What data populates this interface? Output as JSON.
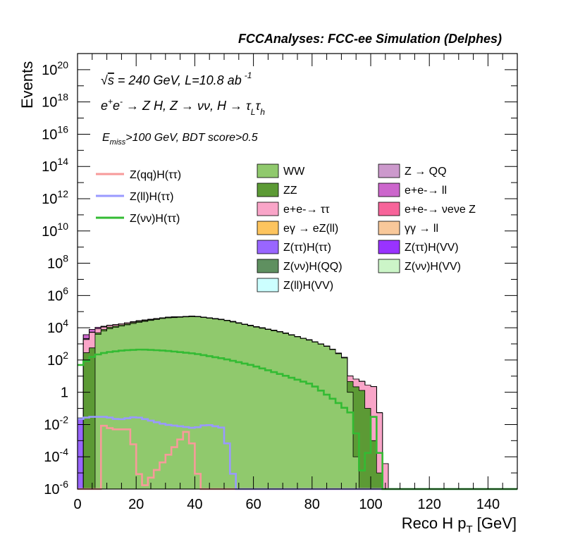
{
  "header": {
    "title": "FCCAnalyses: FCC-ee Simulation (Delphes)"
  },
  "annotations": {
    "line1": {
      "sqrt": "√",
      "s": "s",
      "rest": " = 240 GeV, L=10.8 ab",
      "sup": "-1"
    },
    "line2": {
      "a": "e",
      "a_sup": "+",
      "b": "e",
      "b_sup": "-",
      "c": " → Z H, Z  → νν, H  → τ",
      "c_sub": "L",
      "d": "τ",
      "d_sub": "h"
    },
    "line3": {
      "E": "E",
      "E_sub": "miss",
      "rest": ">100 GeV, BDT score>0.5"
    }
  },
  "chart_data": {
    "type": "histogram",
    "title": "FCCAnalyses: FCC-ee Simulation (Delphes)",
    "xlabel": "Reco H p_T [GeV]",
    "xlabel_parts": {
      "a": "Reco H p",
      "sub": "T",
      "b": " [GeV]"
    },
    "ylabel": "Events",
    "xlim": [
      0,
      150
    ],
    "ylim": [
      1e-06,
      1e+21
    ],
    "yscale": "log",
    "xticks": [
      "0",
      "20",
      "40",
      "60",
      "80",
      "100",
      "120",
      "140"
    ],
    "yticks": [
      {
        "base": "10",
        "exp": "-6"
      },
      {
        "base": "10",
        "exp": "-4"
      },
      {
        "base": "10",
        "exp": "-2"
      },
      {
        "base": "1",
        "exp": ""
      },
      {
        "base": "10",
        "exp": "2"
      },
      {
        "base": "10",
        "exp": "4"
      },
      {
        "base": "10",
        "exp": "6"
      },
      {
        "base": "10",
        "exp": "8"
      },
      {
        "base": "10",
        "exp": "10"
      },
      {
        "base": "10",
        "exp": "12"
      },
      {
        "base": "10",
        "exp": "14"
      },
      {
        "base": "10",
        "exp": "16"
      },
      {
        "base": "10",
        "exp": "18"
      },
      {
        "base": "10",
        "exp": "20"
      }
    ],
    "bin_width": 2,
    "stack": [
      {
        "name": "WW",
        "color": "#90c96d",
        "x": [
          6,
          10,
          20,
          30,
          40,
          50,
          60,
          70,
          80,
          86,
          92,
          96
        ],
        "y": [
          3000.0,
          8000.0,
          20000.0,
          40000.0,
          50000.0,
          30000.0,
          12000.0,
          5000.0,
          1500.0,
          600,
          100,
          1e-06
        ]
      },
      {
        "name": "ZZ",
        "color": "#5c9a35",
        "x": [
          2,
          6,
          10,
          20,
          30,
          40,
          50,
          60,
          70,
          80,
          86,
          90,
          98,
          104
        ],
        "y": [
          200,
          800,
          2000.0,
          3000.0,
          2500.0,
          2000.0,
          1200.0,
          500,
          150,
          40,
          15,
          8,
          1,
          1e-06
        ]
      },
      {
        "name": "e+e- → ττ",
        "color": "#f9a5c8",
        "x": [
          2,
          4,
          10,
          20,
          30,
          40,
          50,
          60,
          70,
          80,
          90,
          98,
          102,
          106
        ],
        "y": [
          500,
          5000.0,
          3000.0,
          2500.0,
          2000.0,
          1500.0,
          800,
          300,
          120,
          40,
          8,
          3,
          2,
          1e-06
        ]
      },
      {
        "name": "e+e- → νeνe Z",
        "color": "#f7649a",
        "x": [
          4,
          10,
          20,
          30,
          40,
          50,
          60,
          70,
          76,
          82
        ],
        "y": [
          10,
          6,
          4,
          3,
          2,
          1,
          0.4,
          0.2,
          0.05,
          1e-06
        ]
      },
      {
        "name": "Z(νν)H(VV)",
        "color": "#ccf5c8",
        "x": [
          4,
          10,
          20,
          30,
          40,
          50,
          60,
          70,
          72
        ],
        "y": [
          15,
          6,
          3,
          1.5,
          0.8,
          0.4,
          0.1,
          0.02,
          1e-06
        ]
      },
      {
        "name": "Z → QQ",
        "color": "#cc99cc",
        "x": [
          2,
          6,
          12,
          16
        ],
        "y": [
          300,
          200,
          10,
          1e-06
        ]
      },
      {
        "name": "e+e- → ll",
        "color": "#cc66cc",
        "x": [
          2,
          4,
          8,
          12,
          14,
          16
        ],
        "y": [
          800,
          3000.0,
          1500.0,
          200,
          50,
          1e-06
        ]
      },
      {
        "name": "γγ → ll",
        "color": "#f8c89a",
        "x": [
          2,
          4,
          10,
          16,
          20,
          26,
          30
        ],
        "y": [
          50,
          40,
          25,
          15,
          6,
          2,
          1e-06
        ]
      },
      {
        "name": "eγ → eZ(ll)",
        "color": "#fdc45e",
        "x": [
          4,
          10,
          16,
          22
        ],
        "y": [
          5,
          2.5,
          1,
          1e-06
        ]
      },
      {
        "name": "Z(ττ)H(VV)",
        "color": "#9933ff",
        "x": [
          2,
          10,
          20,
          30,
          40,
          50,
          54,
          58
        ],
        "y": [
          0.1,
          0.12,
          0.09,
          0.06,
          0.04,
          0.02,
          0.01,
          1e-06
        ]
      },
      {
        "name": "Z(ττ)H(ττ)",
        "color": "#9966ff",
        "x": [
          0,
          4,
          8,
          12,
          16,
          20,
          24
        ],
        "y": [
          0.02,
          0.05,
          0.04,
          0.03,
          0.02,
          0.01,
          1e-06
        ]
      },
      {
        "name": "Z(νν)H(QQ)",
        "color": "#5f9060",
        "x": [
          18,
          24
        ],
        "y": [
          0.005,
          1e-06
        ]
      },
      {
        "name": "Z(ll)H(VV)",
        "color": "#ccffff",
        "x": [
          26,
          38,
          44
        ],
        "y": [
          0.01,
          0.005,
          1e-06
        ]
      }
    ],
    "lines": [
      {
        "name": "Z(qq)H(ττ)",
        "color": "#f79a9a",
        "x": [
          8,
          12,
          18,
          22,
          38,
          42,
          46
        ],
        "y": [
          0.01,
          0.005,
          0.005,
          1e-06,
          0.006,
          1e-06,
          1e-06
        ]
      },
      {
        "name": "Z(ll)H(ττ)",
        "color": "#9999ff",
        "x": [
          0,
          4,
          10,
          14,
          20,
          30,
          40,
          44,
          50,
          54
        ],
        "y": [
          0.02,
          0.03,
          0.03,
          0.02,
          0.03,
          0.01,
          0.006,
          0.01,
          0.006,
          1e-06
        ]
      },
      {
        "name": "Z(νν)H(ττ)",
        "color": "#33bb33",
        "x": [
          0,
          2,
          4,
          6,
          10,
          16,
          22,
          30,
          40,
          50,
          60,
          70,
          80,
          88,
          94,
          98,
          100,
          102,
          104
        ],
        "y": [
          40,
          60,
          120,
          200,
          300,
          400,
          450,
          380,
          250,
          120,
          45,
          12,
          3,
          0.3,
          0.04,
          1e-06,
          0.03,
          0.03,
          1e-06
        ]
      }
    ],
    "legend": {
      "lines": [
        "Z(qq)H(ττ)",
        "Z(ll)H(ττ)",
        "Z(νν)H(ττ)"
      ],
      "col1": [
        "WW",
        "ZZ",
        "e+e-→ ττ",
        "eγ → eZ(ll)",
        "Z(ττ)H(ττ)",
        "Z(νν)H(QQ)",
        "Z(ll)H(VV)"
      ],
      "col1_colors": [
        "#90c96d",
        "#5c9a35",
        "#f9a5c8",
        "#fdc45e",
        "#9966ff",
        "#5f9060",
        "#ccffff"
      ],
      "col2": [
        "Z → QQ",
        "e+e-→ ll",
        "e+e-→ νeνe Z",
        "γγ → ll",
        "Z(ττ)H(VV)",
        "Z(νν)H(VV)"
      ],
      "col2_colors": [
        "#cc99cc",
        "#cc66cc",
        "#f7649a",
        "#f8c89a",
        "#9933ff",
        "#ccf5c8"
      ]
    }
  }
}
